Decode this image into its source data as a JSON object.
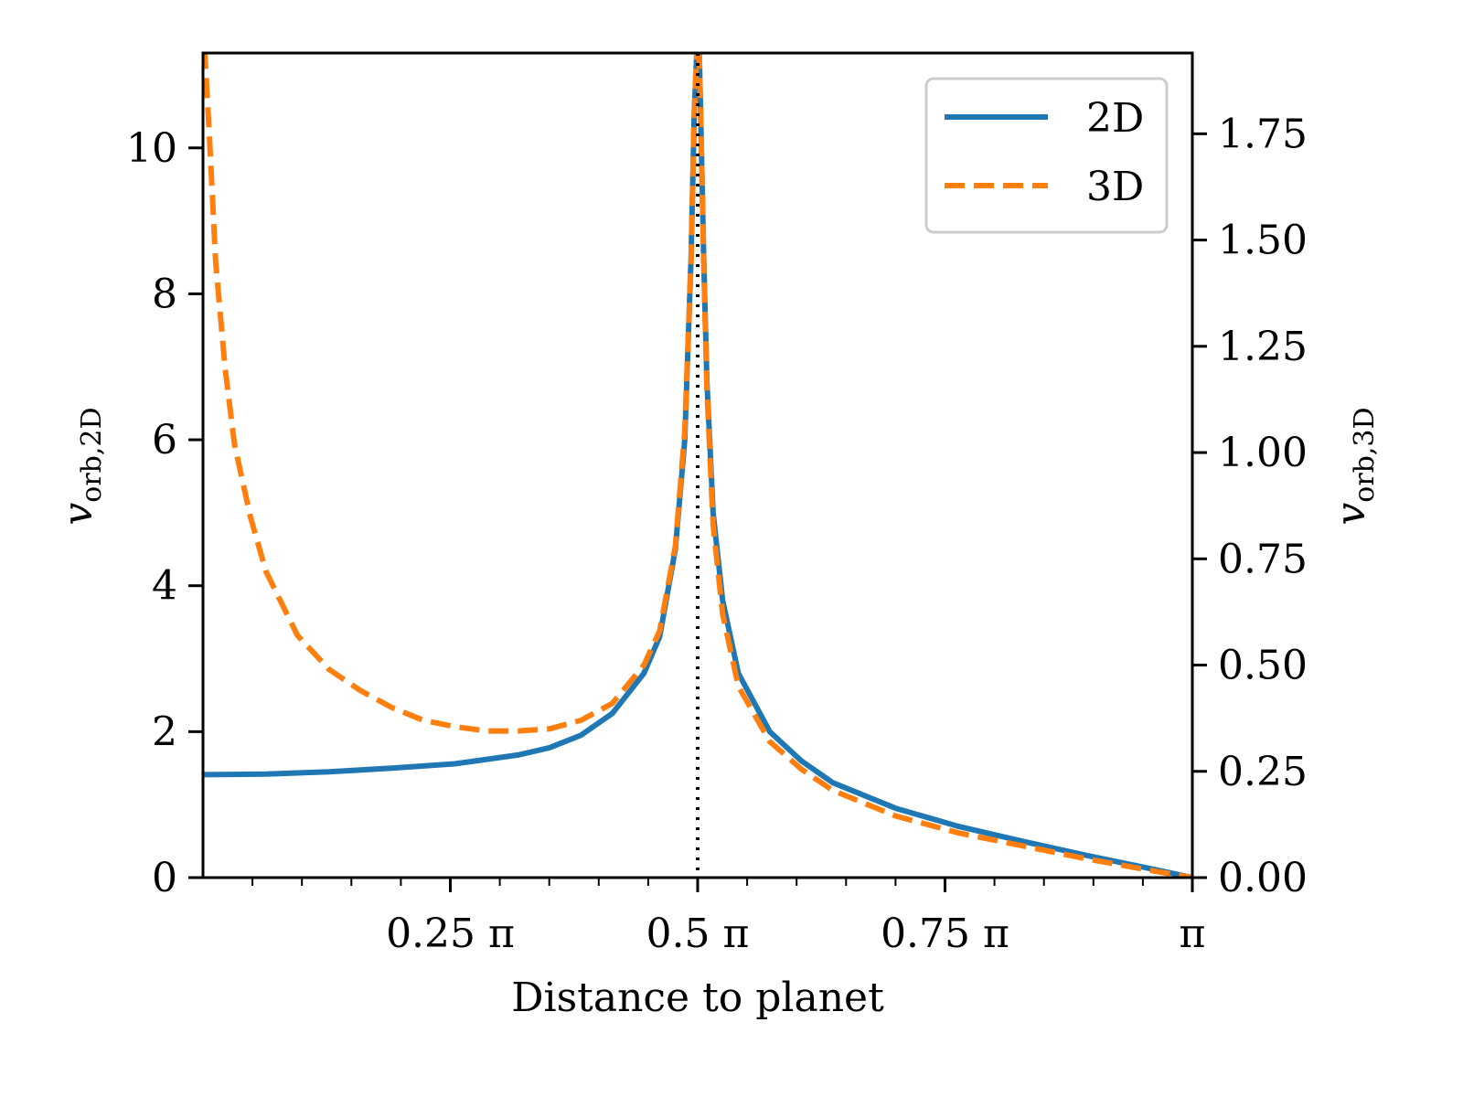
{
  "chart_data": {
    "type": "line",
    "xlabel": "Distance to planet",
    "ylabel_left": {
      "main": "v",
      "sub": "orb,2D"
    },
    "ylabel_right": {
      "main": "v",
      "sub": "orb,3D"
    },
    "x_ticks": [
      {
        "value": 0.7854,
        "label": "0.25 π"
      },
      {
        "value": 1.5708,
        "label": "0.5 π"
      },
      {
        "value": 2.3562,
        "label": "0.75 π"
      },
      {
        "value": 3.1416,
        "label": "π"
      }
    ],
    "xlim": [
      0.0,
      3.1416
    ],
    "ylim_left": [
      0,
      11.3
    ],
    "ylim_right": [
      0,
      1.94
    ],
    "y_ticks_left": [
      0,
      2,
      4,
      6,
      8,
      10
    ],
    "y_ticks_right": [
      "0.00",
      "0.25",
      "0.50",
      "0.75",
      "1.00",
      "1.25",
      "1.50",
      "1.75"
    ],
    "vline_x": 1.5708,
    "legend": {
      "position": "top-right",
      "entries": [
        "2D",
        "3D"
      ]
    },
    "series": [
      {
        "name": "2D",
        "axis": "left",
        "color": "#1f77b4",
        "style": "solid",
        "x": [
          0.0,
          0.2,
          0.4,
          0.6,
          0.8,
          1.0,
          1.1,
          1.2,
          1.3,
          1.4,
          1.45,
          1.5,
          1.53,
          1.55,
          1.56,
          1.57,
          1.575,
          1.58,
          1.59,
          1.6,
          1.62,
          1.65,
          1.7,
          1.8,
          1.9,
          2.0,
          2.2,
          2.4,
          2.6,
          2.8,
          3.0,
          3.1416
        ],
        "y": [
          1.41,
          1.42,
          1.45,
          1.5,
          1.56,
          1.68,
          1.78,
          1.95,
          2.25,
          2.8,
          3.3,
          4.5,
          6.0,
          8.5,
          10.5,
          11.5,
          11.5,
          10.5,
          8.5,
          6.8,
          5.0,
          3.8,
          2.8,
          2.0,
          1.6,
          1.3,
          0.95,
          0.7,
          0.5,
          0.31,
          0.13,
          0.0
        ]
      },
      {
        "name": "3D",
        "axis": "right",
        "color": "#ff7f0e",
        "style": "dashed",
        "x": [
          0.005,
          0.02,
          0.04,
          0.07,
          0.1,
          0.15,
          0.2,
          0.3,
          0.4,
          0.5,
          0.6,
          0.7,
          0.8,
          0.9,
          1.0,
          1.1,
          1.2,
          1.3,
          1.4,
          1.45,
          1.5,
          1.53,
          1.55,
          1.56,
          1.57,
          1.575,
          1.58,
          1.59,
          1.6,
          1.62,
          1.65,
          1.7,
          1.8,
          1.9,
          2.0,
          2.2,
          2.4,
          2.6,
          2.8,
          3.0,
          3.1416
        ],
        "y": [
          1.95,
          1.75,
          1.45,
          1.2,
          1.02,
          0.85,
          0.72,
          0.57,
          0.49,
          0.44,
          0.4,
          0.37,
          0.355,
          0.345,
          0.345,
          0.35,
          0.37,
          0.41,
          0.5,
          0.58,
          0.78,
          1.05,
          1.45,
          1.8,
          1.97,
          1.97,
          1.8,
          1.45,
          1.15,
          0.83,
          0.62,
          0.45,
          0.32,
          0.255,
          0.205,
          0.145,
          0.105,
          0.075,
          0.045,
          0.018,
          0.0
        ]
      }
    ]
  }
}
